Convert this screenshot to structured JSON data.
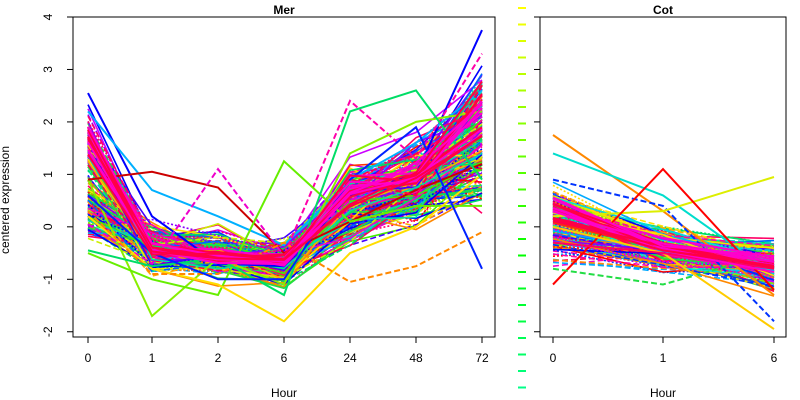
{
  "ylabel": "centered expression",
  "chart_data": [
    {
      "type": "line",
      "title": "Mer",
      "xlabel": "Hour",
      "ylabel": "centered expression",
      "categories": [
        "0",
        "1",
        "2",
        "6",
        "24",
        "48",
        "72"
      ],
      "ylim": [
        -2.1,
        4.0
      ],
      "yticks": [
        -2,
        -1,
        0,
        1,
        2,
        3,
        4
      ],
      "series_count": 225,
      "representative_series": [
        {
          "values": [
            2.55,
            0.2,
            -0.7,
            -0.75,
            0.6,
            1.0,
            3.75
          ],
          "color": "#0000ff"
        },
        {
          "values": [
            2.2,
            0.7,
            0.2,
            -0.35,
            0.9,
            1.6,
            2.6
          ],
          "color": "#00b0ff"
        },
        {
          "values": [
            1.8,
            -0.5,
            -0.6,
            -0.55,
            2.4,
            1.3,
            3.3
          ],
          "color": "#ff00aa"
        },
        {
          "values": [
            0.9,
            -1.7,
            -0.6,
            -1.1,
            1.4,
            2.0,
            2.2
          ],
          "color": "#88ee00"
        },
        {
          "values": [
            0.9,
            1.05,
            0.75,
            -0.5,
            0.1,
            0.7,
            1.2
          ],
          "color": "#cc0000"
        },
        {
          "values": [
            0.05,
            -0.7,
            1.1,
            -0.55,
            0.5,
            1.2,
            2.1
          ],
          "color": "#ee00cc"
        },
        {
          "values": [
            -0.5,
            -1.0,
            -1.3,
            1.25,
            0.1,
            0.4,
            0.4
          ],
          "color": "#66ee00"
        },
        {
          "values": [
            0.2,
            -0.8,
            -1.1,
            -1.8,
            -0.5,
            0.0,
            1.0
          ],
          "color": "#ffdd00"
        },
        {
          "values": [
            0.3,
            -0.9,
            -0.9,
            -0.3,
            -1.05,
            -0.75,
            -0.1
          ],
          "color": "#ff8800"
        },
        {
          "values": [
            -0.45,
            -0.75,
            -0.6,
            -1.3,
            2.2,
            2.6,
            0.9
          ],
          "color": "#00dd66"
        },
        {
          "values": [
            0.6,
            -0.5,
            -1.0,
            -1.0,
            0.9,
            1.9,
            -0.8
          ],
          "color": "#0022ff"
        },
        {
          "values": [
            1.9,
            -0.5,
            -0.5,
            -0.6,
            0.9,
            0.6,
            2.7
          ],
          "color": "#ff0044"
        }
      ]
    },
    {
      "type": "line",
      "title": "Cot",
      "xlabel": "Hour",
      "categories": [
        "0",
        "1",
        "6"
      ],
      "ylim": [
        -2.1,
        4.0
      ],
      "series_count": 225,
      "representative_series": [
        {
          "values": [
            1.75,
            0.3,
            -1.3
          ],
          "color": "#ff8800"
        },
        {
          "values": [
            1.4,
            0.6,
            -0.9
          ],
          "color": "#00ddcc"
        },
        {
          "values": [
            0.9,
            0.4,
            -1.8
          ],
          "color": "#0033ff"
        },
        {
          "values": [
            0.2,
            0.3,
            0.95
          ],
          "color": "#ddee00"
        },
        {
          "values": [
            -1.1,
            1.1,
            -1.2
          ],
          "color": "#ff0000"
        },
        {
          "values": [
            -0.8,
            -1.1,
            -0.5
          ],
          "color": "#22dd44"
        },
        {
          "values": [
            0.0,
            -0.5,
            -1.95
          ],
          "color": "#ffcc00"
        },
        {
          "values": [
            -0.3,
            -0.5,
            -0.8
          ],
          "color": "#ff0066"
        }
      ]
    }
  ],
  "legend": {
    "colors": [
      "#ffff00",
      "#eeff00",
      "#ddff00",
      "#ccff00",
      "#bbff00",
      "#aaff00",
      "#99ff00",
      "#88ff00",
      "#77ff00",
      "#66ff00",
      "#55ff00",
      "#44ff00",
      "#33ff00",
      "#22ff00",
      "#11ff00",
      "#00ff00",
      "#00ff11",
      "#00ff22",
      "#00ff33",
      "#00ff44",
      "#00ff55",
      "#00ff66",
      "#00ff77",
      "#00ff88"
    ]
  }
}
